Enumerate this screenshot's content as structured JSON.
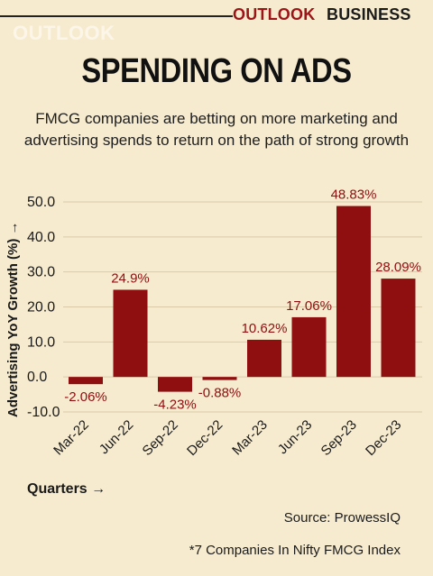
{
  "brand": {
    "outlook": "OUTLOOK",
    "business": "BUSINESS",
    "watermark": "OUTLOOK"
  },
  "title": "SPENDING ON ADS",
  "subtitle": "FMCG companies are betting on more marketing and advertising spends to return on the path of strong growth",
  "colors": {
    "bar": "#8f0e10",
    "value_label": "#8f0e10",
    "brand_red": "#9c1418",
    "background": "#f7ebcf",
    "grid": "#d9cba9"
  },
  "chart_data": {
    "type": "bar",
    "categories": [
      "Mar-22",
      "Jun-22",
      "Sep-22",
      "Dec-22",
      "Mar-23",
      "Jun-23",
      "Sep-23",
      "Dec-23"
    ],
    "values": [
      -2.06,
      24.9,
      -4.23,
      -0.88,
      10.62,
      17.06,
      48.83,
      28.09
    ],
    "value_labels": [
      "-2.06%",
      "24.9%",
      "-4.23%",
      "-0.88%",
      "10.62%",
      "17.06%",
      "48.83%",
      "28.09%"
    ],
    "yticks": [
      "-10.0",
      "0.0",
      "10.0",
      "20.0",
      "30.0",
      "40.0",
      "50.0"
    ],
    "ytick_values": [
      -10,
      0,
      10,
      20,
      30,
      40,
      50
    ],
    "ylim": [
      -10,
      50
    ],
    "xlabel": "Quarters →",
    "ylabel": "Advertising YoY Growth (%) →",
    "grid": true
  },
  "source": "Source: ProwessIQ",
  "footnote": "*7 Companies In Nifty FMCG Index"
}
